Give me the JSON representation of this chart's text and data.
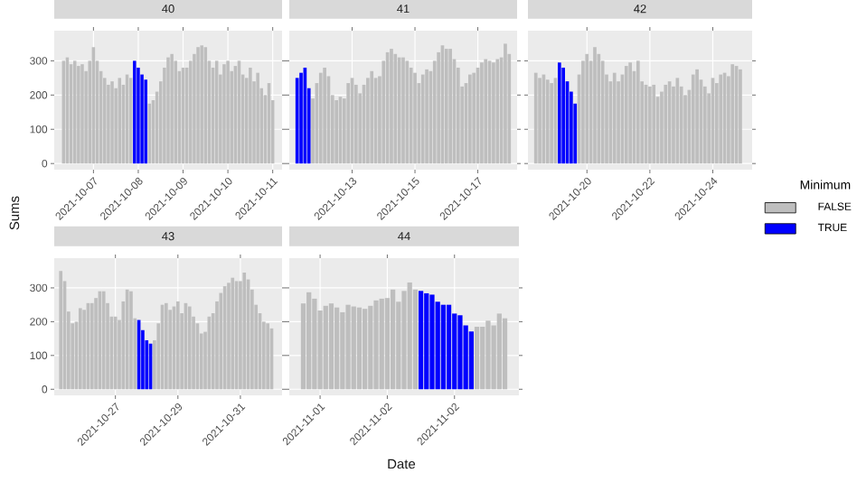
{
  "chart_data": [
    {
      "type": "bar",
      "title": "40",
      "ylabel": "Sums",
      "grid": true,
      "x": [
        "2021-10-06T08:00",
        "2021-10-06T10:00",
        "2021-10-06T12:00",
        "2021-10-06T14:00",
        "2021-10-06T16:00",
        "2021-10-06T18:00",
        "2021-10-06T20:00",
        "2021-10-06T22:00",
        "2021-10-07T00:00",
        "2021-10-07T02:00",
        "2021-10-07T04:00",
        "2021-10-07T06:00",
        "2021-10-07T08:00",
        "2021-10-07T10:00",
        "2021-10-07T12:00",
        "2021-10-07T14:00",
        "2021-10-07T16:00",
        "2021-10-07T18:00",
        "2021-10-07T20:00",
        "2021-10-07T22:00",
        "2021-10-08T00:00",
        "2021-10-08T02:00",
        "2021-10-08T04:00",
        "2021-10-08T06:00",
        "2021-10-08T08:00",
        "2021-10-08T10:00",
        "2021-10-08T12:00",
        "2021-10-08T14:00",
        "2021-10-08T16:00",
        "2021-10-08T18:00",
        "2021-10-08T20:00",
        "2021-10-08T22:00",
        "2021-10-09T00:00",
        "2021-10-09T02:00",
        "2021-10-09T04:00",
        "2021-10-09T06:00",
        "2021-10-09T08:00",
        "2021-10-09T10:00",
        "2021-10-09T12:00",
        "2021-10-09T14:00",
        "2021-10-09T16:00",
        "2021-10-09T18:00",
        "2021-10-09T20:00",
        "2021-10-09T22:00",
        "2021-10-10T00:00",
        "2021-10-10T02:00",
        "2021-10-10T04:00",
        "2021-10-10T06:00",
        "2021-10-10T08:00",
        "2021-10-10T10:00",
        "2021-10-10T12:00",
        "2021-10-10T14:00",
        "2021-10-10T16:00",
        "2021-10-10T18:00",
        "2021-10-10T20:00",
        "2021-10-10T22:00",
        "2021-10-11T00:00"
      ],
      "series": [
        {
          "color": "#bebebe",
          "values": [
            300,
            310,
            290,
            300,
            285,
            290,
            270,
            300,
            340,
            300,
            270,
            250,
            230,
            240,
            220,
            250,
            230,
            260,
            250,
            null,
            null,
            null,
            null,
            175,
            185,
            210,
            240,
            280,
            310,
            320,
            300,
            270,
            280,
            280,
            300,
            320,
            340,
            345,
            340,
            300,
            280,
            300,
            260,
            290,
            300,
            270,
            285,
            300,
            260,
            250,
            280,
            240,
            265,
            220,
            200,
            235,
            185
          ]
        },
        {
          "color": "#0000ff",
          "values": [
            null,
            null,
            null,
            null,
            null,
            null,
            null,
            null,
            null,
            null,
            null,
            null,
            null,
            null,
            null,
            null,
            null,
            null,
            null,
            300,
            280,
            260,
            245,
            null,
            null,
            null,
            null,
            null,
            null,
            null,
            null,
            null,
            null,
            null,
            null,
            null,
            null,
            null,
            null,
            null,
            null,
            null,
            null,
            null,
            null,
            null,
            null,
            null,
            null,
            null,
            null,
            null,
            null,
            null,
            null,
            null,
            null
          ]
        }
      ],
      "xlim": [
        "2021-10-06T03:00",
        "2021-10-11T05:00"
      ],
      "ylim": [
        -18,
        388
      ],
      "xticks": [
        {
          "value": "2021-10-07",
          "label": "2021-10-07"
        },
        {
          "value": "2021-10-08",
          "label": "2021-10-08"
        },
        {
          "value": "2021-10-09",
          "label": "2021-10-09"
        },
        {
          "value": "2021-10-10",
          "label": "2021-10-10"
        },
        {
          "value": "2021-10-11",
          "label": "2021-10-11"
        }
      ],
      "yticks": [
        0,
        100,
        200,
        300
      ]
    },
    {
      "type": "bar",
      "title": "41",
      "grid": true,
      "tick_labels": "x",
      "x": [
        "2021-10-11T06:00",
        "2021-10-11T09:00",
        "2021-10-11T12:00",
        "2021-10-11T15:00",
        "2021-10-11T18:00",
        "2021-10-11T21:00",
        "2021-10-12T00:00",
        "2021-10-12T03:00",
        "2021-10-12T06:00",
        "2021-10-12T09:00",
        "2021-10-12T12:00",
        "2021-10-12T15:00",
        "2021-10-12T18:00",
        "2021-10-12T21:00",
        "2021-10-13T00:00",
        "2021-10-13T03:00",
        "2021-10-13T06:00",
        "2021-10-13T09:00",
        "2021-10-13T12:00",
        "2021-10-13T15:00",
        "2021-10-13T18:00",
        "2021-10-13T21:00",
        "2021-10-14T00:00",
        "2021-10-14T03:00",
        "2021-10-14T06:00",
        "2021-10-14T09:00",
        "2021-10-14T12:00",
        "2021-10-14T15:00",
        "2021-10-14T18:00",
        "2021-10-14T21:00",
        "2021-10-15T00:00",
        "2021-10-15T03:00",
        "2021-10-15T06:00",
        "2021-10-15T09:00",
        "2021-10-15T12:00",
        "2021-10-15T15:00",
        "2021-10-15T18:00",
        "2021-10-15T21:00",
        "2021-10-16T00:00",
        "2021-10-16T03:00",
        "2021-10-16T06:00",
        "2021-10-16T09:00",
        "2021-10-16T12:00",
        "2021-10-16T15:00",
        "2021-10-16T18:00",
        "2021-10-16T21:00",
        "2021-10-17T00:00",
        "2021-10-17T03:00",
        "2021-10-17T06:00",
        "2021-10-17T09:00",
        "2021-10-17T12:00",
        "2021-10-17T15:00",
        "2021-10-17T18:00",
        "2021-10-17T21:00",
        "2021-10-18T00:00"
      ],
      "series": [
        {
          "color": "#bebebe",
          "values": [
            null,
            null,
            null,
            null,
            190,
            235,
            265,
            280,
            255,
            200,
            185,
            195,
            190,
            235,
            250,
            230,
            205,
            230,
            250,
            270,
            250,
            255,
            300,
            325,
            335,
            320,
            310,
            310,
            300,
            280,
            265,
            235,
            260,
            275,
            270,
            300,
            325,
            345,
            335,
            335,
            305,
            280,
            225,
            235,
            260,
            265,
            280,
            295,
            305,
            300,
            295,
            305,
            310,
            350,
            320
          ]
        },
        {
          "color": "#0000ff",
          "values": [
            250,
            265,
            280,
            220,
            null,
            null,
            null,
            null,
            null,
            null,
            null,
            null,
            null,
            null,
            null,
            null,
            null,
            null,
            null,
            null,
            null,
            null,
            null,
            null,
            null,
            null,
            null,
            null,
            null,
            null,
            null,
            null,
            null,
            null,
            null,
            null,
            null,
            null,
            null,
            null,
            null,
            null,
            null,
            null,
            null,
            null,
            null,
            null,
            null,
            null,
            null,
            null,
            null,
            null,
            null
          ]
        }
      ],
      "xlim": [
        "2021-10-11T00:00",
        "2021-10-18T06:00"
      ],
      "ylim": [
        -18,
        388
      ],
      "xticks": [
        {
          "value": "2021-10-13",
          "label": "2021-10-13"
        },
        {
          "value": "2021-10-15",
          "label": "2021-10-15"
        },
        {
          "value": "2021-10-17",
          "label": "2021-10-17"
        }
      ],
      "yticks": [
        0,
        100,
        200,
        300
      ]
    },
    {
      "type": "bar",
      "title": "42",
      "grid": true,
      "tick_labels": "x",
      "legend": "right",
      "legend_title": "Minimum",
      "x": [
        "2021-10-18T09:00",
        "2021-10-18T12:00",
        "2021-10-18T15:00",
        "2021-10-18T18:00",
        "2021-10-18T21:00",
        "2021-10-19T00:00",
        "2021-10-19T03:00",
        "2021-10-19T06:00",
        "2021-10-19T09:00",
        "2021-10-19T12:00",
        "2021-10-19T15:00",
        "2021-10-19T18:00",
        "2021-10-19T21:00",
        "2021-10-20T00:00",
        "2021-10-20T03:00",
        "2021-10-20T06:00",
        "2021-10-20T09:00",
        "2021-10-20T12:00",
        "2021-10-20T15:00",
        "2021-10-20T18:00",
        "2021-10-20T21:00",
        "2021-10-21T00:00",
        "2021-10-21T03:00",
        "2021-10-21T06:00",
        "2021-10-21T09:00",
        "2021-10-21T12:00",
        "2021-10-21T15:00",
        "2021-10-21T18:00",
        "2021-10-21T21:00",
        "2021-10-22T00:00",
        "2021-10-22T03:00",
        "2021-10-22T06:00",
        "2021-10-22T09:00",
        "2021-10-22T12:00",
        "2021-10-22T15:00",
        "2021-10-22T18:00",
        "2021-10-22T21:00",
        "2021-10-23T00:00",
        "2021-10-23T03:00",
        "2021-10-23T06:00",
        "2021-10-23T09:00",
        "2021-10-23T12:00",
        "2021-10-23T15:00",
        "2021-10-23T18:00",
        "2021-10-23T21:00",
        "2021-10-24T00:00",
        "2021-10-24T03:00",
        "2021-10-24T06:00",
        "2021-10-24T09:00",
        "2021-10-24T12:00",
        "2021-10-24T15:00",
        "2021-10-24T18:00",
        "2021-10-24T21:00"
      ],
      "series": [
        {
          "name": "FALSE",
          "color": "#bebebe",
          "values": [
            265,
            250,
            260,
            245,
            235,
            250,
            null,
            null,
            null,
            null,
            null,
            260,
            300,
            320,
            300,
            340,
            320,
            300,
            260,
            240,
            265,
            240,
            260,
            285,
            295,
            270,
            300,
            240,
            230,
            225,
            230,
            195,
            210,
            230,
            240,
            225,
            250,
            225,
            200,
            215,
            260,
            275,
            245,
            225,
            205,
            250,
            235,
            260,
            265,
            255,
            290,
            285,
            275
          ]
        },
        {
          "name": "TRUE",
          "color": "#0000ff",
          "values": [
            null,
            null,
            null,
            null,
            null,
            null,
            295,
            280,
            240,
            210,
            175,
            null,
            null,
            null,
            null,
            null,
            null,
            null,
            null,
            null,
            null,
            null,
            null,
            null,
            null,
            null,
            null,
            null,
            null,
            null,
            null,
            null,
            null,
            null,
            null,
            null,
            null,
            null,
            null,
            null,
            null,
            null,
            null,
            null,
            null,
            null,
            null,
            null,
            null,
            null,
            null,
            null,
            null
          ]
        }
      ],
      "xlim": [
        "2021-10-18T03:00",
        "2021-10-25T06:00"
      ],
      "ylim": [
        -18,
        388
      ],
      "xticks": [
        {
          "value": "2021-10-20",
          "label": "2021-10-20"
        },
        {
          "value": "2021-10-22",
          "label": "2021-10-22"
        },
        {
          "value": "2021-10-24",
          "label": "2021-10-24"
        }
      ],
      "yticks": [
        0,
        100,
        200,
        300
      ]
    },
    {
      "type": "bar",
      "title": "43",
      "grid": true,
      "x": [
        "2021-10-25T06:00",
        "2021-10-25T09:00",
        "2021-10-25T12:00",
        "2021-10-25T15:00",
        "2021-10-25T18:00",
        "2021-10-25T21:00",
        "2021-10-26T00:00",
        "2021-10-26T03:00",
        "2021-10-26T06:00",
        "2021-10-26T09:00",
        "2021-10-26T12:00",
        "2021-10-26T15:00",
        "2021-10-26T18:00",
        "2021-10-26T21:00",
        "2021-10-27T00:00",
        "2021-10-27T03:00",
        "2021-10-27T06:00",
        "2021-10-27T09:00",
        "2021-10-27T12:00",
        "2021-10-27T15:00",
        "2021-10-27T18:00",
        "2021-10-27T21:00",
        "2021-10-28T00:00",
        "2021-10-28T03:00",
        "2021-10-28T06:00",
        "2021-10-28T09:00",
        "2021-10-28T12:00",
        "2021-10-28T15:00",
        "2021-10-28T18:00",
        "2021-10-28T21:00",
        "2021-10-29T00:00",
        "2021-10-29T03:00",
        "2021-10-29T06:00",
        "2021-10-29T09:00",
        "2021-10-29T12:00",
        "2021-10-29T15:00",
        "2021-10-29T18:00",
        "2021-10-29T21:00",
        "2021-10-30T00:00",
        "2021-10-30T03:00",
        "2021-10-30T06:00",
        "2021-10-30T09:00",
        "2021-10-30T12:00",
        "2021-10-30T15:00",
        "2021-10-30T18:00",
        "2021-10-30T21:00",
        "2021-10-31T00:00",
        "2021-10-31T03:00",
        "2021-10-31T06:00",
        "2021-10-31T09:00",
        "2021-10-31T12:00",
        "2021-10-31T15:00",
        "2021-10-31T18:00",
        "2021-10-31T21:00",
        "2021-11-01T00:00"
      ],
      "series": [
        {
          "color": "#bebebe",
          "values": [
            350,
            320,
            230,
            195,
            200,
            240,
            235,
            255,
            255,
            270,
            290,
            290,
            255,
            215,
            215,
            205,
            260,
            295,
            290,
            210,
            null,
            null,
            null,
            null,
            145,
            195,
            250,
            255,
            235,
            245,
            260,
            225,
            255,
            245,
            215,
            195,
            165,
            170,
            215,
            225,
            260,
            285,
            305,
            315,
            330,
            320,
            320,
            345,
            325,
            295,
            250,
            225,
            200,
            195,
            180
          ]
        },
        {
          "color": "#0000ff",
          "values": [
            null,
            null,
            null,
            null,
            null,
            null,
            null,
            null,
            null,
            null,
            null,
            null,
            null,
            null,
            null,
            null,
            null,
            null,
            null,
            null,
            205,
            175,
            145,
            135,
            null,
            null,
            null,
            null,
            null,
            null,
            null,
            null,
            null,
            null,
            null,
            null,
            null,
            null,
            null,
            null,
            null,
            null,
            null,
            null,
            null,
            null,
            null,
            null,
            null,
            null,
            null,
            null,
            null,
            null,
            null
          ]
        }
      ],
      "xlim": [
        "2021-10-25T01:00",
        "2021-11-01T08:00"
      ],
      "ylim": [
        -18,
        388
      ],
      "xticks": [
        {
          "value": "2021-10-27",
          "label": "2021-10-27"
        },
        {
          "value": "2021-10-29",
          "label": "2021-10-29"
        },
        {
          "value": "2021-10-31",
          "label": "2021-10-31"
        }
      ],
      "yticks": [
        0,
        100,
        200,
        300
      ]
    },
    {
      "type": "bar",
      "title": "44",
      "xlabel": "Date",
      "grid": true,
      "tick_labels": "x",
      "x": [
        "2021-11-01T09:00",
        "2021-11-01T10:00",
        "2021-11-01T11:00",
        "2021-11-01T12:00",
        "2021-11-01T13:00",
        "2021-11-01T14:00",
        "2021-11-01T15:00",
        "2021-11-01T16:00",
        "2021-11-01T17:00",
        "2021-11-01T18:00",
        "2021-11-01T19:00",
        "2021-11-01T20:00",
        "2021-11-01T21:00",
        "2021-11-01T22:00",
        "2021-11-01T23:00",
        "2021-11-02T00:00",
        "2021-11-02T01:00",
        "2021-11-02T02:00",
        "2021-11-02T03:00",
        "2021-11-02T04:00",
        "2021-11-02T05:00",
        "2021-11-02T06:00",
        "2021-11-02T07:00",
        "2021-11-02T08:00",
        "2021-11-02T09:00",
        "2021-11-02T10:00",
        "2021-11-02T11:00",
        "2021-11-02T12:00",
        "2021-11-02T13:00",
        "2021-11-02T14:00",
        "2021-11-02T15:00",
        "2021-11-02T16:00",
        "2021-11-02T17:00",
        "2021-11-02T18:00",
        "2021-11-02T19:00",
        "2021-11-02T20:00",
        "2021-11-02T21:00"
      ],
      "series": [
        {
          "color": "#bebebe",
          "values": [
            254,
            287,
            268,
            233,
            247,
            254,
            242,
            228,
            250,
            245,
            242,
            238,
            247,
            263,
            268,
            270,
            295,
            259,
            291,
            316,
            295,
            null,
            null,
            null,
            null,
            null,
            null,
            null,
            null,
            null,
            null,
            185,
            185,
            203,
            189,
            224,
            210
          ]
        },
        {
          "color": "#0000ff",
          "values": [
            null,
            null,
            null,
            null,
            null,
            null,
            null,
            null,
            null,
            null,
            null,
            null,
            null,
            null,
            null,
            null,
            null,
            null,
            null,
            null,
            null,
            291,
            284,
            280,
            259,
            250,
            250,
            224,
            219,
            189,
            171,
            null,
            null,
            null,
            null,
            null,
            null
          ]
        }
      ],
      "xlim": [
        "2021-11-01T06:30",
        "2021-11-02T23:30"
      ],
      "ylim": [
        -18,
        388
      ],
      "xticks": [
        {
          "value": "2021-11-01T12:00",
          "label": "2021-11-01"
        },
        {
          "value": "2021-11-02T00:00",
          "label": "2021-11-02"
        },
        {
          "value": "2021-11-02T12:00",
          "label": "2021-11-02"
        }
      ],
      "yticks": [
        0,
        100,
        200,
        300
      ]
    }
  ]
}
